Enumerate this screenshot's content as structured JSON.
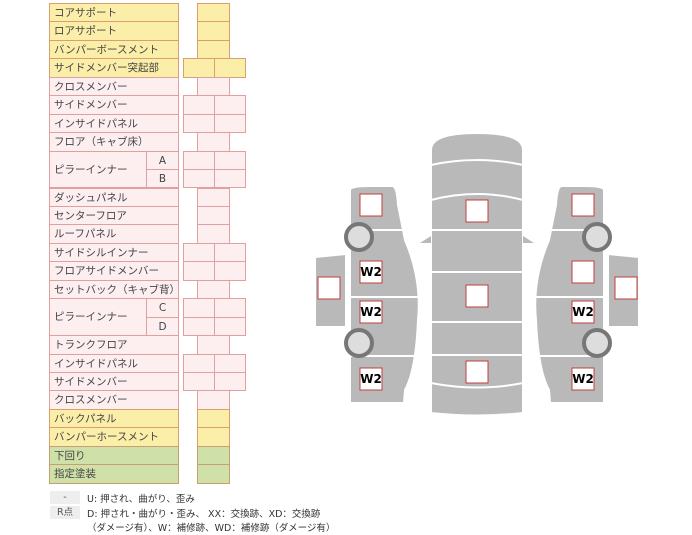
{
  "rows": [
    {
      "label": "コアサポート",
      "cells": "single",
      "color": "yellow"
    },
    {
      "label": "ロアサポート",
      "cells": "single",
      "color": "yellow"
    },
    {
      "label": "バンパーボースメント",
      "cells": "single",
      "color": "yellow"
    },
    {
      "label": "サイドメンバー突起部",
      "cells": "double",
      "color": "yellow"
    },
    {
      "label": "クロスメンバー",
      "cells": "single",
      "color": "pink"
    },
    {
      "label": "サイドメンバー",
      "cells": "double",
      "color": "pink"
    },
    {
      "label": "インサイドパネル",
      "cells": "double",
      "color": "pink"
    },
    {
      "label": "フロア（キャブ床）",
      "cells": "single",
      "color": "pink"
    },
    {
      "label": "ピラーインナー",
      "sub": "A",
      "cells": "double",
      "color": "pink"
    },
    {
      "label": "",
      "sub": "B",
      "cells": "double",
      "color": "pink"
    },
    {
      "label": "ダッシュパネル",
      "cells": "single",
      "color": "pink"
    },
    {
      "label": "センターフロア",
      "cells": "single",
      "color": "pink"
    },
    {
      "label": "ルーフパネル",
      "cells": "single",
      "color": "pink"
    },
    {
      "label": "サイドシルインナー",
      "cells": "double",
      "color": "pink"
    },
    {
      "label": "フロアサイドメンバー",
      "cells": "double",
      "color": "pink"
    },
    {
      "label": "セットバック（キャブ背）",
      "cells": "single",
      "color": "pink"
    },
    {
      "label": "ピラーインナー",
      "sub": "C",
      "cells": "double",
      "color": "pink"
    },
    {
      "label": "",
      "sub": "D",
      "cells": "double",
      "color": "pink"
    },
    {
      "label": "トランクフロア",
      "cells": "single",
      "color": "pink"
    },
    {
      "label": "インサイドパネル",
      "cells": "double",
      "color": "pink"
    },
    {
      "label": "サイドメンバー",
      "cells": "double",
      "color": "pink"
    },
    {
      "label": "クロスメンバー",
      "cells": "single",
      "color": "pink"
    },
    {
      "label": "バックパネル",
      "cells": "single",
      "color": "yellow"
    },
    {
      "label": "バンパーホースメント",
      "cells": "single",
      "color": "yellow"
    },
    {
      "label": "下回り",
      "cells": "single",
      "color": "green"
    },
    {
      "label": "指定塗装",
      "cells": "single",
      "color": "green"
    }
  ],
  "legend": {
    "key1": "-",
    "text1": "U: 押され、曲がり、歪み",
    "key2": "R点",
    "text2": "D: 押され・曲がり・歪み、 XX：交換跡、XD：交換跡",
    "text3": "（ダメージ有）、W：補修跡、WD：補修跡（ダメージ有）"
  },
  "diagram": {
    "markers": [
      {
        "part": "left-front",
        "label": ""
      },
      {
        "part": "left-door-panel",
        "label": ""
      },
      {
        "part": "left-front-door",
        "label": "W2"
      },
      {
        "part": "left-rear-door",
        "label": "W2"
      },
      {
        "part": "left-rear",
        "label": "W2"
      },
      {
        "part": "hood",
        "label": ""
      },
      {
        "part": "roof",
        "label": ""
      },
      {
        "part": "trunk",
        "label": ""
      },
      {
        "part": "right-front",
        "label": ""
      },
      {
        "part": "right-front-door",
        "label": ""
      },
      {
        "part": "right-door-panel",
        "label": ""
      },
      {
        "part": "right-rear-door",
        "label": "W2"
      },
      {
        "part": "right-rear",
        "label": "W2"
      }
    ],
    "colors": {
      "body": "#b8b8b8",
      "marker_border": "#c04040",
      "pillar_border": "#e0a0a0"
    }
  }
}
